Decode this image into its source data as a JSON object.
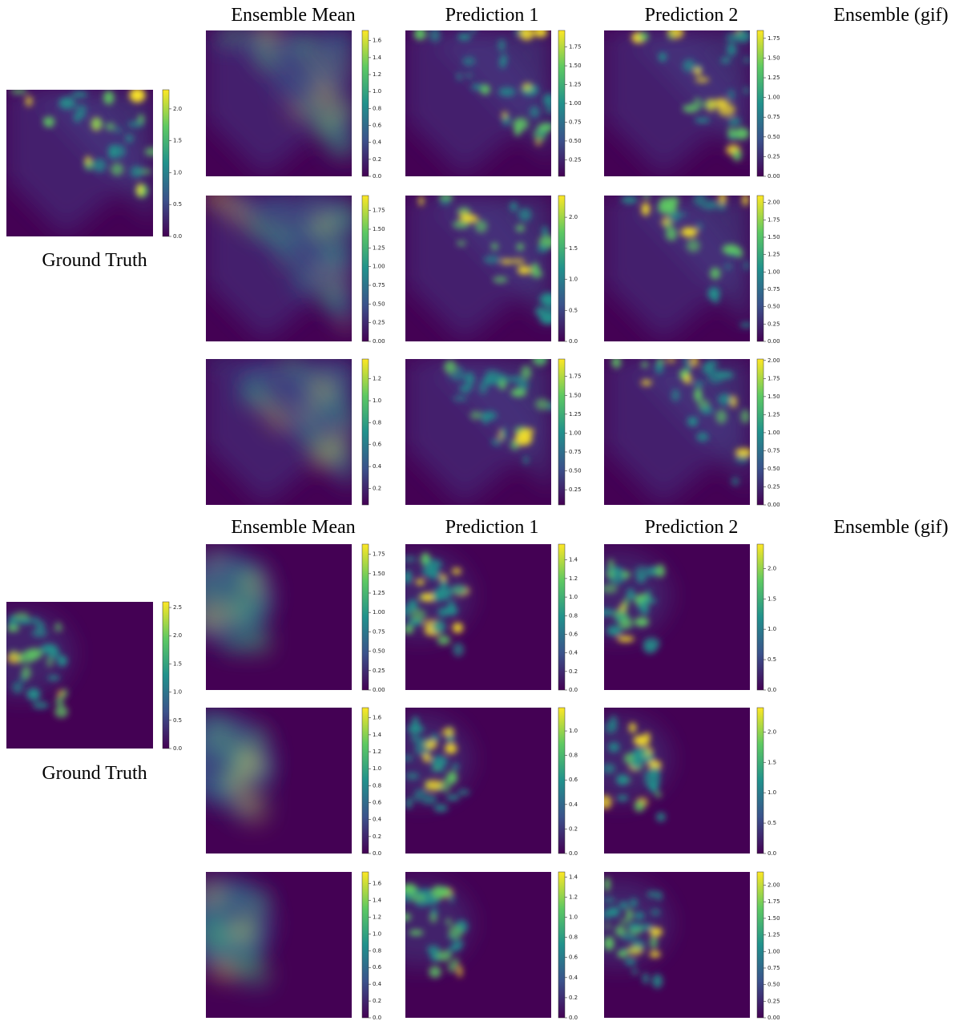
{
  "figures": [
    {
      "column_titles": [
        "Ensemble Mean",
        "Prediction 1",
        "Prediction 2",
        "Ensemble (gif)"
      ],
      "ground_truth": {
        "label": "Ground Truth",
        "colorbar": {
          "lim": [
            0,
            2.3
          ],
          "ticks": [
            {
              "value": 0,
              "label": "0.0"
            },
            0.5,
            {
              "value": 1,
              "label": "1.0"
            },
            1.5,
            {
              "value": 2,
              "label": "2.0"
            }
          ]
        }
      },
      "colorbars": [
        [
          {
            "lim": [
              0,
              1.72
            ],
            "ticks": [
              {
                "value": 0,
                "label": "0.0"
              },
              0.2,
              0.4,
              0.6,
              0.8,
              {
                "value": 1,
                "label": "1.0"
              },
              1.2,
              1.4,
              1.6
            ]
          },
          {
            "lim": [
              0.03,
              1.97
            ],
            "ticks": [
              0.25,
              {
                "value": 0.5,
                "label": "0.50"
              },
              0.75,
              {
                "value": 1,
                "label": "1.00"
              },
              1.25,
              {
                "value": 1.5,
                "label": "1.50"
              },
              1.75
            ]
          },
          {
            "lim": [
              0,
              1.85
            ],
            "ticks": [
              {
                "value": 0,
                "label": "0.00"
              },
              0.25,
              {
                "value": 0.5,
                "label": "0.50"
              },
              0.75,
              {
                "value": 1,
                "label": "1.00"
              },
              1.25,
              {
                "value": 1.5,
                "label": "1.50"
              },
              1.75
            ]
          }
        ],
        [
          {
            "lim": [
              0,
              1.95
            ],
            "ticks": [
              {
                "value": 0,
                "label": "0.00"
              },
              0.25,
              {
                "value": 0.5,
                "label": "0.50"
              },
              0.75,
              {
                "value": 1,
                "label": "1.00"
              },
              1.25,
              {
                "value": 1.5,
                "label": "1.50"
              },
              1.75
            ]
          },
          {
            "lim": [
              0,
              2.35
            ],
            "ticks": [
              {
                "value": 0,
                "label": "0.0"
              },
              0.5,
              {
                "value": 1,
                "label": "1.0"
              },
              1.5,
              {
                "value": 2,
                "label": "2.0"
              }
            ]
          },
          {
            "lim": [
              0,
              2.1
            ],
            "ticks": [
              {
                "value": 0,
                "label": "0.00"
              },
              0.25,
              {
                "value": 0.5,
                "label": "0.50"
              },
              0.75,
              {
                "value": 1,
                "label": "1.00"
              },
              1.25,
              {
                "value": 1.5,
                "label": "1.50"
              },
              1.75,
              {
                "value": 2,
                "label": "2.00"
              }
            ]
          }
        ],
        [
          {
            "lim": [
              0.05,
              1.38
            ],
            "ticks": [
              0.2,
              0.4,
              0.6,
              0.8,
              {
                "value": 1,
                "label": "1.0"
              },
              1.2
            ]
          },
          {
            "lim": [
              0.05,
              1.98
            ],
            "ticks": [
              0.25,
              {
                "value": 0.5,
                "label": "0.50"
              },
              0.75,
              {
                "value": 1,
                "label": "1.00"
              },
              1.25,
              {
                "value": 1.5,
                "label": "1.50"
              },
              1.75
            ]
          },
          {
            "lim": [
              0,
              2.02
            ],
            "ticks": [
              {
                "value": 0,
                "label": "0.00"
              },
              0.25,
              {
                "value": 0.5,
                "label": "0.50"
              },
              0.75,
              {
                "value": 1,
                "label": "1.00"
              },
              1.25,
              {
                "value": 1.5,
                "label": "1.50"
              },
              1.75,
              {
                "value": 2,
                "label": "2.00"
              }
            ]
          }
        ]
      ]
    },
    {
      "column_titles": [
        "Ensemble Mean",
        "Prediction 1",
        "Prediction 2",
        "Ensemble (gif)"
      ],
      "ground_truth": {
        "label": "Ground Truth",
        "colorbar": {
          "lim": [
            0,
            2.6
          ],
          "ticks": [
            {
              "value": 0,
              "label": "0.0"
            },
            0.5,
            {
              "value": 1,
              "label": "1.0"
            },
            1.5,
            {
              "value": 2,
              "label": "2.0"
            },
            2.5
          ]
        }
      },
      "colorbars": [
        [
          {
            "lim": [
              0,
              1.88
            ],
            "ticks": [
              {
                "value": 0,
                "label": "0.00"
              },
              0.25,
              {
                "value": 0.5,
                "label": "0.50"
              },
              0.75,
              {
                "value": 1,
                "label": "1.00"
              },
              1.25,
              {
                "value": 1.5,
                "label": "1.50"
              },
              1.75
            ]
          },
          {
            "lim": [
              0,
              1.57
            ],
            "ticks": [
              {
                "value": 0,
                "label": "0.0"
              },
              0.2,
              0.4,
              0.6,
              0.8,
              {
                "value": 1,
                "label": "1.0"
              },
              1.2,
              1.4
            ]
          },
          {
            "lim": [
              0,
              2.4
            ],
            "ticks": [
              {
                "value": 0,
                "label": "0.0"
              },
              0.5,
              {
                "value": 1,
                "label": "1.0"
              },
              1.5,
              {
                "value": 2,
                "label": "2.0"
              }
            ]
          }
        ],
        [
          {
            "lim": [
              0,
              1.72
            ],
            "ticks": [
              {
                "value": 0,
                "label": "0.0"
              },
              0.2,
              0.4,
              0.6,
              0.8,
              {
                "value": 1,
                "label": "1.0"
              },
              1.2,
              1.4,
              1.6
            ]
          },
          {
            "lim": [
              0,
              1.19
            ],
            "ticks": [
              {
                "value": 0,
                "label": "0.0"
              },
              0.2,
              0.4,
              0.6,
              0.8,
              {
                "value": 1,
                "label": "1.0"
              }
            ]
          },
          {
            "lim": [
              0,
              2.4
            ],
            "ticks": [
              {
                "value": 0,
                "label": "0.0"
              },
              0.5,
              {
                "value": 1,
                "label": "1.0"
              },
              1.5,
              {
                "value": 2,
                "label": "2.0"
              }
            ]
          }
        ],
        [
          {
            "lim": [
              0,
              1.74
            ],
            "ticks": [
              {
                "value": 0,
                "label": "0.0"
              },
              0.2,
              0.4,
              0.6,
              0.8,
              {
                "value": 1,
                "label": "1.0"
              },
              1.2,
              1.4,
              1.6
            ]
          },
          {
            "lim": [
              0,
              1.45
            ],
            "ticks": [
              {
                "value": 0,
                "label": "0.0"
              },
              0.2,
              0.4,
              0.6,
              0.8,
              {
                "value": 1,
                "label": "1.0"
              },
              1.2,
              1.4
            ]
          },
          {
            "lim": [
              0,
              2.2
            ],
            "ticks": [
              {
                "value": 0,
                "label": "0.00"
              },
              0.25,
              {
                "value": 0.5,
                "label": "0.50"
              },
              0.75,
              {
                "value": 1,
                "label": "1.00"
              },
              1.25,
              {
                "value": 1.5,
                "label": "1.50"
              },
              1.75,
              {
                "value": 2,
                "label": "2.00"
              }
            ]
          }
        ]
      ]
    }
  ]
}
